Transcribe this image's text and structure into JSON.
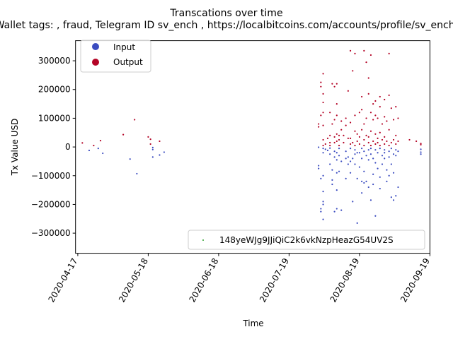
{
  "chart_data": {
    "type": "scatter",
    "title": "Transcations over time",
    "subtitle": "Wallet tags: , fraud, Telegram ID sv_ench , https://localbitcoins.com/accounts/profile/sv_ench/",
    "xlabel": "Time",
    "ylabel": "Tx Value USD",
    "x_ticks": [
      "2020-04-17",
      "2020-05-18",
      "2020-06-18",
      "2020-07-19",
      "2020-08-19",
      "2020-09-19"
    ],
    "y_ticks": [
      -300000,
      -200000,
      -100000,
      0,
      100000,
      200000,
      300000
    ],
    "y_tick_labels": [
      "−300000",
      "−200000",
      "−100000",
      "0",
      "100000",
      "200000",
      "300000"
    ],
    "xlim": [
      "2020-04-16",
      "2020-09-19"
    ],
    "ylim": [
      -370000,
      370000
    ],
    "grid": false,
    "legend_placement": "upper-left",
    "legend": [
      {
        "label": "Input",
        "color": "#3b4cc0"
      },
      {
        "label": "Output",
        "color": "#b40426"
      }
    ],
    "address_legend": {
      "label": "148yeWJg9JJiQiC2k6vkNzpHeazG54UV2S",
      "color": "#2ca02c",
      "placement": "lower-right"
    },
    "series": [
      {
        "name": "Input",
        "color": "#3b4cc0",
        "points": [
          [
            "2020-04-22",
            -12000
          ],
          [
            "2020-04-26",
            -5000
          ],
          [
            "2020-04-28",
            -22000
          ],
          [
            "2020-05-10",
            -42000
          ],
          [
            "2020-05-13",
            -93000
          ],
          [
            "2020-05-20",
            -2000
          ],
          [
            "2020-05-20",
            -9000
          ],
          [
            "2020-05-20",
            -35000
          ],
          [
            "2020-05-23",
            -28000
          ],
          [
            "2020-05-25",
            -18000
          ],
          [
            "2020-08-01",
            -1000
          ],
          [
            "2020-08-01",
            -65000
          ],
          [
            "2020-08-01",
            -75000
          ],
          [
            "2020-08-02",
            -110000
          ],
          [
            "2020-08-02",
            -215000
          ],
          [
            "2020-08-02",
            -225000
          ],
          [
            "2020-08-03",
            -5000
          ],
          [
            "2020-08-03",
            -20000
          ],
          [
            "2020-08-03",
            -100000
          ],
          [
            "2020-08-03",
            -155000
          ],
          [
            "2020-08-03",
            -190000
          ],
          [
            "2020-08-03",
            -200000
          ],
          [
            "2020-08-03",
            -252000
          ],
          [
            "2020-08-04",
            -8000
          ],
          [
            "2020-08-05",
            -12000
          ],
          [
            "2020-08-06",
            -4000
          ],
          [
            "2020-08-06",
            -25000
          ],
          [
            "2020-08-06",
            -60000
          ],
          [
            "2020-08-07",
            -80000
          ],
          [
            "2020-08-07",
            -115000
          ],
          [
            "2020-08-07",
            -130000
          ],
          [
            "2020-08-08",
            -15000
          ],
          [
            "2020-08-08",
            -35000
          ],
          [
            "2020-08-08",
            -225000
          ],
          [
            "2020-08-09",
            -20000
          ],
          [
            "2020-08-09",
            -45000
          ],
          [
            "2020-08-09",
            -90000
          ],
          [
            "2020-08-09",
            -150000
          ],
          [
            "2020-08-09",
            -215000
          ],
          [
            "2020-08-10",
            -5000
          ],
          [
            "2020-08-10",
            -30000
          ],
          [
            "2020-08-10",
            -85000
          ],
          [
            "2020-08-11",
            -50000
          ],
          [
            "2020-08-11",
            -220000
          ],
          [
            "2020-08-13",
            -15000
          ],
          [
            "2020-08-13",
            -40000
          ],
          [
            "2020-08-13",
            -110000
          ],
          [
            "2020-08-14",
            -35000
          ],
          [
            "2020-08-14",
            -60000
          ],
          [
            "2020-08-15",
            -5000
          ],
          [
            "2020-08-15",
            -50000
          ],
          [
            "2020-08-15",
            -90000
          ],
          [
            "2020-08-16",
            -40000
          ],
          [
            "2020-08-16",
            -190000
          ],
          [
            "2020-08-17",
            -10000
          ],
          [
            "2020-08-17",
            -25000
          ],
          [
            "2020-08-17",
            -60000
          ],
          [
            "2020-08-18",
            -20000
          ],
          [
            "2020-08-18",
            -110000
          ],
          [
            "2020-08-18",
            -265000
          ],
          [
            "2020-08-19",
            -20000
          ],
          [
            "2020-08-19",
            -70000
          ],
          [
            "2020-08-20",
            -5000
          ],
          [
            "2020-08-20",
            -40000
          ],
          [
            "2020-08-20",
            -120000
          ],
          [
            "2020-08-20",
            -160000
          ],
          [
            "2020-08-21",
            -15000
          ],
          [
            "2020-08-21",
            -85000
          ],
          [
            "2020-08-21",
            -125000
          ],
          [
            "2020-08-22",
            -30000
          ],
          [
            "2020-08-22",
            -120000
          ],
          [
            "2020-08-23",
            -10000
          ],
          [
            "2020-08-23",
            -45000
          ],
          [
            "2020-08-23",
            -140000
          ],
          [
            "2020-08-24",
            -5000
          ],
          [
            "2020-08-24",
            -25000
          ],
          [
            "2020-08-24",
            -185000
          ],
          [
            "2020-08-25",
            -40000
          ],
          [
            "2020-08-25",
            -95000
          ],
          [
            "2020-08-25",
            -130000
          ],
          [
            "2020-08-26",
            -10000
          ],
          [
            "2020-08-26",
            -55000
          ],
          [
            "2020-08-26",
            -240000
          ],
          [
            "2020-08-27",
            -20000
          ],
          [
            "2020-08-27",
            -75000
          ],
          [
            "2020-08-28",
            -5000
          ],
          [
            "2020-08-28",
            -105000
          ],
          [
            "2020-08-28",
            -145000
          ],
          [
            "2020-08-29",
            -30000
          ],
          [
            "2020-08-29",
            -60000
          ],
          [
            "2020-08-30",
            -10000
          ],
          [
            "2020-08-30",
            -20000
          ],
          [
            "2020-08-30",
            -40000
          ],
          [
            "2020-08-31",
            -80000
          ],
          [
            "2020-08-31",
            -120000
          ],
          [
            "2020-09-01",
            -15000
          ],
          [
            "2020-09-01",
            -35000
          ],
          [
            "2020-09-01",
            -100000
          ],
          [
            "2020-09-02",
            -5000
          ],
          [
            "2020-09-02",
            -60000
          ],
          [
            "2020-09-02",
            -175000
          ],
          [
            "2020-09-03",
            -25000
          ],
          [
            "2020-09-03",
            -90000
          ],
          [
            "2020-09-03",
            -185000
          ],
          [
            "2020-09-04",
            -10000
          ],
          [
            "2020-09-04",
            -30000
          ],
          [
            "2020-09-04",
            -170000
          ],
          [
            "2020-09-05",
            -15000
          ],
          [
            "2020-09-05",
            -140000
          ],
          [
            "2020-09-15",
            -8000
          ],
          [
            "2020-09-15",
            -18000
          ],
          [
            "2020-09-15",
            -25000
          ]
        ]
      },
      {
        "name": "Output",
        "color": "#b40426",
        "points": [
          [
            "2020-04-19",
            14000
          ],
          [
            "2020-04-24",
            5000
          ],
          [
            "2020-04-27",
            22000
          ],
          [
            "2020-05-07",
            43000
          ],
          [
            "2020-05-12",
            95000
          ],
          [
            "2020-05-18",
            35000
          ],
          [
            "2020-05-19",
            10000
          ],
          [
            "2020-05-19",
            27000
          ],
          [
            "2020-05-23",
            20000
          ],
          [
            "2020-08-01",
            70000
          ],
          [
            "2020-08-01",
            80000
          ],
          [
            "2020-08-02",
            110000
          ],
          [
            "2020-08-02",
            210000
          ],
          [
            "2020-08-02",
            225000
          ],
          [
            "2020-08-03",
            5000
          ],
          [
            "2020-08-03",
            25000
          ],
          [
            "2020-08-03",
            75000
          ],
          [
            "2020-08-03",
            120000
          ],
          [
            "2020-08-03",
            155000
          ],
          [
            "2020-08-03",
            185000
          ],
          [
            "2020-08-03",
            255000
          ],
          [
            "2020-08-04",
            10000
          ],
          [
            "2020-08-05",
            30000
          ],
          [
            "2020-08-06",
            5000
          ],
          [
            "2020-08-06",
            15000
          ],
          [
            "2020-08-06",
            40000
          ],
          [
            "2020-08-06",
            120000
          ],
          [
            "2020-08-07",
            80000
          ],
          [
            "2020-08-07",
            220000
          ],
          [
            "2020-08-08",
            15000
          ],
          [
            "2020-08-08",
            35000
          ],
          [
            "2020-08-08",
            95000
          ],
          [
            "2020-08-08",
            210000
          ],
          [
            "2020-08-09",
            20000
          ],
          [
            "2020-08-09",
            45000
          ],
          [
            "2020-08-09",
            110000
          ],
          [
            "2020-08-09",
            150000
          ],
          [
            "2020-08-09",
            220000
          ],
          [
            "2020-08-10",
            5000
          ],
          [
            "2020-08-10",
            25000
          ],
          [
            "2020-08-10",
            40000
          ],
          [
            "2020-08-11",
            60000
          ],
          [
            "2020-08-11",
            90000
          ],
          [
            "2020-08-12",
            15000
          ],
          [
            "2020-08-12",
            40000
          ],
          [
            "2020-08-13",
            75000
          ],
          [
            "2020-08-13",
            100000
          ],
          [
            "2020-08-14",
            30000
          ],
          [
            "2020-08-14",
            195000
          ],
          [
            "2020-08-15",
            10000
          ],
          [
            "2020-08-15",
            30000
          ],
          [
            "2020-08-15",
            85000
          ],
          [
            "2020-08-15",
            335000
          ],
          [
            "2020-08-16",
            15000
          ],
          [
            "2020-08-16",
            265000
          ],
          [
            "2020-08-17",
            5000
          ],
          [
            "2020-08-17",
            55000
          ],
          [
            "2020-08-17",
            110000
          ],
          [
            "2020-08-17",
            325000
          ],
          [
            "2020-08-18",
            20000
          ],
          [
            "2020-08-18",
            45000
          ],
          [
            "2020-08-19",
            10000
          ],
          [
            "2020-08-19",
            35000
          ],
          [
            "2020-08-19",
            120000
          ],
          [
            "2020-08-20",
            60000
          ],
          [
            "2020-08-20",
            130000
          ],
          [
            "2020-08-20",
            175000
          ],
          [
            "2020-08-21",
            5000
          ],
          [
            "2020-08-21",
            25000
          ],
          [
            "2020-08-21",
            80000
          ],
          [
            "2020-08-21",
            335000
          ],
          [
            "2020-08-22",
            40000
          ],
          [
            "2020-08-22",
            100000
          ],
          [
            "2020-08-22",
            295000
          ],
          [
            "2020-08-23",
            15000
          ],
          [
            "2020-08-23",
            35000
          ],
          [
            "2020-08-23",
            185000
          ],
          [
            "2020-08-23",
            240000
          ],
          [
            "2020-08-24",
            5000
          ],
          [
            "2020-08-24",
            55000
          ],
          [
            "2020-08-24",
            120000
          ],
          [
            "2020-08-24",
            320000
          ],
          [
            "2020-08-25",
            20000
          ],
          [
            "2020-08-25",
            95000
          ],
          [
            "2020-08-25",
            150000
          ],
          [
            "2020-08-26",
            10000
          ],
          [
            "2020-08-26",
            45000
          ],
          [
            "2020-08-26",
            110000
          ],
          [
            "2020-08-26",
            160000
          ],
          [
            "2020-08-27",
            15000
          ],
          [
            "2020-08-27",
            30000
          ],
          [
            "2020-08-27",
            100000
          ],
          [
            "2020-08-28",
            5000
          ],
          [
            "2020-08-28",
            50000
          ],
          [
            "2020-08-28",
            140000
          ],
          [
            "2020-08-28",
            175000
          ],
          [
            "2020-08-29",
            25000
          ],
          [
            "2020-08-29",
            80000
          ],
          [
            "2020-08-30",
            10000
          ],
          [
            "2020-08-30",
            35000
          ],
          [
            "2020-08-30",
            105000
          ],
          [
            "2020-08-30",
            165000
          ],
          [
            "2020-08-31",
            20000
          ],
          [
            "2020-08-31",
            90000
          ],
          [
            "2020-09-01",
            5000
          ],
          [
            "2020-09-01",
            60000
          ],
          [
            "2020-09-01",
            180000
          ],
          [
            "2020-09-01",
            325000
          ],
          [
            "2020-09-02",
            15000
          ],
          [
            "2020-09-02",
            135000
          ],
          [
            "2020-09-03",
            25000
          ],
          [
            "2020-09-03",
            95000
          ],
          [
            "2020-09-04",
            10000
          ],
          [
            "2020-09-04",
            40000
          ],
          [
            "2020-09-04",
            140000
          ],
          [
            "2020-09-05",
            20000
          ],
          [
            "2020-09-05",
            100000
          ],
          [
            "2020-09-10",
            25000
          ],
          [
            "2020-09-13",
            20000
          ],
          [
            "2020-09-15",
            8000
          ],
          [
            "2020-09-15",
            12000
          ]
        ]
      }
    ]
  }
}
